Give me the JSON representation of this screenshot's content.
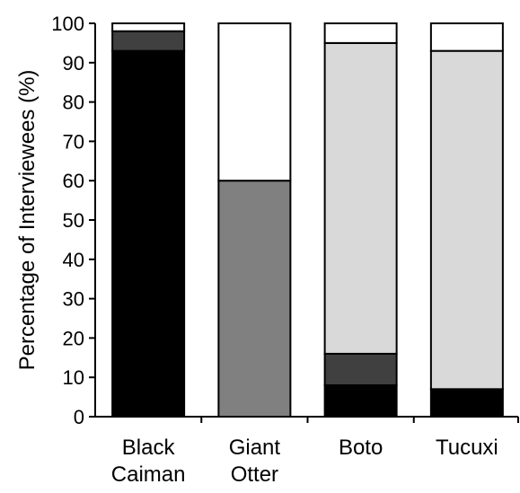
{
  "chart_data": {
    "type": "bar",
    "stacked": true,
    "title": "",
    "xlabel": "",
    "ylabel": "Percentage of Interviewees (%)",
    "ylim": [
      0,
      100
    ],
    "yticks": [
      "0",
      "10",
      "20",
      "30",
      "40",
      "50",
      "60",
      "70",
      "80",
      "90",
      "100"
    ],
    "grid": false,
    "legend": "none",
    "categories": [
      [
        "Black",
        "Caiman"
      ],
      [
        "Giant",
        "Otter"
      ],
      [
        "Boto"
      ],
      [
        "Tucuxi"
      ]
    ],
    "series": [
      {
        "color": "#000000",
        "values": [
          93,
          0,
          8,
          7
        ]
      },
      {
        "color": "#404040",
        "values": [
          5,
          0,
          8,
          0
        ]
      },
      {
        "color": "#808080",
        "values": [
          0,
          60,
          0,
          0
        ]
      },
      {
        "color": "#d9d9d9",
        "values": [
          0,
          0,
          79,
          86
        ]
      },
      {
        "color": "#ffffff",
        "values": [
          2,
          40,
          5,
          7
        ]
      }
    ]
  }
}
